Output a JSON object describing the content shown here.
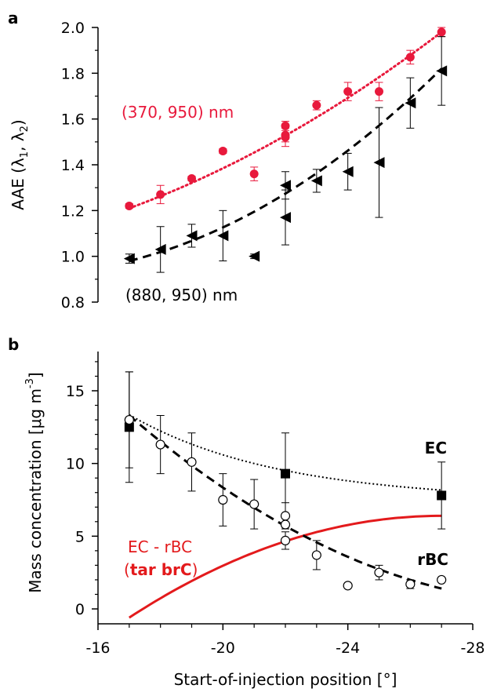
{
  "colors": {
    "red": "#e8193c",
    "curve_red": "#e31a1c",
    "black": "#000000"
  },
  "panel_a": {
    "letter": "a",
    "ylabel_prefix": "AAE (λ",
    "ylabel_sub1": "1",
    "ylabel_mid": ", λ",
    "ylabel_sub2": "2",
    "ylabel_suffix": ")",
    "ytick_labels": [
      "0.8",
      "1.0",
      "1.2",
      "1.4",
      "1.6",
      "1.8",
      "2.0"
    ],
    "label_red": "(370, 950) nm",
    "label_black": "(880, 950) nm"
  },
  "panel_b": {
    "letter": "b",
    "ylabel_prefix": "Mass concentration [μg m",
    "ylabel_sup": "-3",
    "ylabel_suffix": "]",
    "ytick_labels": [
      "0",
      "5",
      "10",
      "15"
    ],
    "label_ec": "EC",
    "label_rbc": "rBC",
    "label_diff": "EC - rBC",
    "label_tar_open": "(",
    "label_tar_bold": "tar brC",
    "label_tar_close": ")"
  },
  "xaxis": {
    "xlabel": "Start-of-injection position [°]",
    "xtick_labels": [
      "-16",
      "-20",
      "-24",
      "-28"
    ]
  },
  "chart_data": [
    {
      "type": "scatter",
      "panel": "a",
      "ylabel": "AAE (λ1, λ2)",
      "xlim": [
        -16,
        -28
      ],
      "ylim": [
        0.8,
        2.0
      ],
      "series": [
        {
          "name": "(370, 950) nm",
          "marker": "circle",
          "color": "#e8193c",
          "x": [
            -17,
            -18,
            -19,
            -20,
            -21,
            -22,
            -22,
            -22,
            -23,
            -24,
            -25,
            -26,
            -27
          ],
          "y": [
            1.22,
            1.27,
            1.34,
            1.46,
            1.36,
            1.57,
            1.53,
            1.52,
            1.66,
            1.72,
            1.72,
            1.87,
            1.98
          ],
          "err": [
            0.01,
            0.04,
            0.01,
            0.01,
            0.03,
            0.02,
            0.03,
            0.04,
            0.02,
            0.04,
            0.04,
            0.03,
            0.02
          ],
          "fit": {
            "style": "dotted",
            "x": [
              -17,
              -27
            ],
            "y": [
              1.21,
              1.98
            ]
          }
        },
        {
          "name": "(880, 950) nm",
          "marker": "triangle-left",
          "color": "#000000",
          "x": [
            -17,
            -18,
            -19,
            -20,
            -21,
            -22,
            -22,
            -23,
            -24,
            -25,
            -26,
            -27
          ],
          "y": [
            0.99,
            1.03,
            1.09,
            1.09,
            1.0,
            1.31,
            1.17,
            1.33,
            1.37,
            1.41,
            1.67,
            1.81
          ],
          "err": [
            0.02,
            0.1,
            0.05,
            0.11,
            0.01,
            0.06,
            0.12,
            0.05,
            0.08,
            0.24,
            0.11,
            0.15
          ],
          "fit": {
            "style": "dashed",
            "x": [
              -17,
              -27
            ],
            "y": [
              0.98,
              1.82
            ]
          }
        }
      ]
    },
    {
      "type": "scatter",
      "panel": "b",
      "ylabel": "Mass concentration [μg m-3]",
      "xlabel": "Start-of-injection position [°]",
      "xlim": [
        -16,
        -28
      ],
      "ylim": [
        -0.8,
        18
      ],
      "series": [
        {
          "name": "EC",
          "marker": "square",
          "color": "#000000",
          "x": [
            -17,
            -22,
            -27
          ],
          "y": [
            12.5,
            9.3,
            7.8
          ],
          "err": [
            3.8,
            2.8,
            2.3
          ],
          "fit": {
            "style": "dotted"
          }
        },
        {
          "name": "rBC",
          "marker": "open-circle",
          "color": "#000000",
          "x": [
            -17,
            -18,
            -19,
            -20,
            -21,
            -22,
            -22,
            -22,
            -23,
            -24,
            -25,
            -26,
            -27
          ],
          "y": [
            13.0,
            11.3,
            10.1,
            7.5,
            7.2,
            6.4,
            5.8,
            4.7,
            3.7,
            1.6,
            2.5,
            1.7,
            2.0
          ],
          "err": [
            3.3,
            2.0,
            2.0,
            1.8,
            1.7,
            0.9,
            0.0,
            0.6,
            1.0,
            0.0,
            0.5,
            0.3,
            0.0
          ],
          "fit": {
            "style": "dashed"
          }
        },
        {
          "name": "EC - rBC (tar brC)",
          "marker": "none",
          "color": "#e31a1c",
          "x": [
            -17,
            -18,
            -19,
            -20,
            -21,
            -22,
            -23,
            -24,
            -25,
            -26,
            -27
          ],
          "y": [
            -0.6,
            0.9,
            2.1,
            3.1,
            3.9,
            4.6,
            5.2,
            5.7,
            6.0,
            6.3,
            6.4
          ]
        }
      ]
    }
  ]
}
